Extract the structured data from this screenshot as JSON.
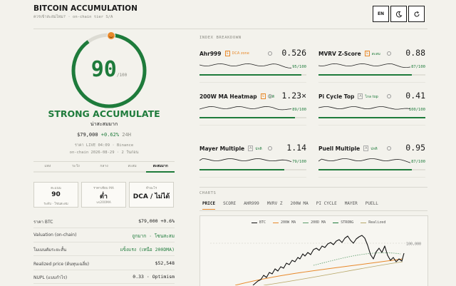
{
  "header": {
    "title": "BITCOIN ACCUMULATION",
    "subtitle": "ควรเข้าสะสมไหม? · on-chain tier S/A",
    "language": "EN"
  },
  "summary": {
    "gauge": {
      "value": 90,
      "range": [
        0,
        100
      ],
      "max_label": "/100",
      "color": "#1e7b3b"
    },
    "verdict": "STRONG ACCUMULATE",
    "verdict_sub": "น่าสะสมมาก",
    "price": "$79,000",
    "change": "+0.62%",
    "period": "24H",
    "live": "ราคา LIVE 04:09 · Binance",
    "onchain": "on-chain 2026-08-29 · 2 วันก่อน",
    "zones": [
      "แพง",
      "ระวัง",
      "กลาง",
      "สะสม",
      "สะสมมาก"
    ],
    "active_zone": 4,
    "stats": [
      {
        "label": "คะแนน",
        "value": "90",
        "sub": "ระดับ · โซนสะสม"
      },
      {
        "label": "ราคาเทียบ MA",
        "value": "ต่ำ",
        "sub": "vs200MA"
      },
      {
        "label": "ทำอะไร",
        "value": "DCA / ไม่ได้"
      }
    ],
    "rows": [
      {
        "label": "ราคา BTC",
        "value": "$79,000 +0.6%"
      },
      {
        "label": "Valuation (on-chain)",
        "value": "ถูกมาก · โซนสะสม"
      },
      {
        "label": "โมเมนตัมระยะสั้น",
        "value": "แข็งแรง (เหนือ 200DMA)"
      },
      {
        "label": "Realized price (ต้นทุนเฉลี่ย)",
        "value": "$52,548"
      },
      {
        "label": "NUPL (แบบกำไร)",
        "value": "0.33 · Optimism"
      }
    ]
  },
  "index": {
    "title": "INDEX BREAKDOWN",
    "cards": [
      {
        "name": "Ahr999",
        "tier": "S",
        "tag": "DCA zone",
        "tag_color": "#e8892b",
        "value": "0.526",
        "score": {
          "value": 95,
          "label": "95/100"
        }
      },
      {
        "name": "MVRV Z-Score",
        "tier": "S",
        "tag": "สะสม",
        "tag_color": "#1e7b3b",
        "value": "0.88",
        "score": {
          "value": 87,
          "label": "87/100"
        }
      },
      {
        "name": "200W MA Heatmap",
        "tier": "S",
        "tag": "ปกติ",
        "tag_color": "#1e7b3b",
        "value": "1.23×",
        "score": {
          "value": 89,
          "label": "89/100"
        }
      },
      {
        "name": "Pi Cycle Top",
        "tier": "A",
        "tag": "ไกล top",
        "tag_color": "#1e7b3b",
        "value": "0.41",
        "score": {
          "value": 100,
          "label": "100/100"
        }
      },
      {
        "name": "Mayer Multiple",
        "tier": "A",
        "tag": "ปกติ",
        "tag_color": "#1e7b3b",
        "value": "1.14",
        "score": {
          "value": 79,
          "label": "79/100"
        }
      },
      {
        "name": "Puell Multiple",
        "tier": "A",
        "tag": "ปกติ",
        "tag_color": "#1e7b3b",
        "value": "0.95",
        "score": {
          "value": 87,
          "label": "87/100"
        }
      }
    ],
    "score_range": [
      0,
      100
    ]
  },
  "charts": {
    "title": "CHARTS",
    "tabs": [
      "PRICE",
      "SCORE",
      "AHR999",
      "MVRV Z",
      "200W MA",
      "PI CYCLE",
      "MAYER",
      "PUELL"
    ],
    "active_tab": 0,
    "legend": [
      {
        "name": "BTC",
        "color": "#111111"
      },
      {
        "name": "200W MA",
        "color": "#e8892b"
      },
      {
        "name": "200D MA",
        "color": "#5b9c6a"
      },
      {
        "name": "STRONG",
        "color": "#1e7b3b"
      },
      {
        "name": "Realized",
        "color": "#b9a86a"
      }
    ],
    "y_label": "100,000"
  }
}
